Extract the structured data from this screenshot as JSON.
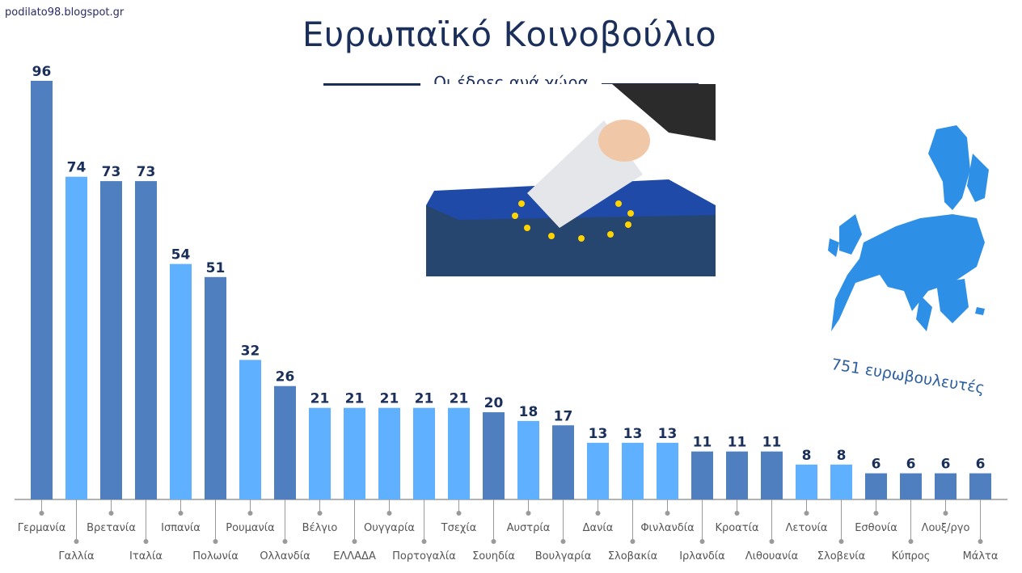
{
  "source": "podilato98.blogspot.gr",
  "header": {
    "title": "Ευρωπαϊκό Κοινοβούλιο",
    "subtitle": "Οι έδρες ανά χώρα"
  },
  "map_caption": "751 ευρωβουλευτές",
  "colors": {
    "dark_bar": "#4f7fbf",
    "light_bar": "#5fb0ff",
    "title": "#1b2f5b"
  },
  "chart_data": {
    "type": "bar",
    "title": "Ευρωπαϊκό Κοινοβούλιο",
    "subtitle": "Οι έδρες ανά χώρα",
    "xlabel": "",
    "ylabel": "",
    "ylim": [
      0,
      96
    ],
    "grid": false,
    "categories": [
      "Γερμανία",
      "Γαλλία",
      "Βρετανία",
      "Ιταλία",
      "Ισπανία",
      "Πολωνία",
      "Ρουμανία",
      "Ολλανδία",
      "Βέλγιο",
      "ΕΛΛΑΔΑ",
      "Ουγγαρία",
      "Πορτογαλία",
      "Τσεχία",
      "Σουηδία",
      "Αυστρία",
      "Βουλγαρία",
      "Δανία",
      "Σλοβακία",
      "Φινλανδία",
      "Ιρλανδία",
      "Κροατία",
      "Λιθουανία",
      "Λετονία",
      "Σλοβενία",
      "Εσθονία",
      "Κύπρος",
      "Λουξ/ργο",
      "Μάλτα"
    ],
    "values": [
      96,
      74,
      73,
      73,
      54,
      51,
      32,
      26,
      21,
      21,
      21,
      21,
      21,
      20,
      18,
      17,
      13,
      13,
      13,
      11,
      11,
      11,
      8,
      8,
      6,
      6,
      6,
      6
    ],
    "bar_shade": [
      "dark",
      "light",
      "dark",
      "dark",
      "light",
      "dark",
      "light",
      "dark",
      "light",
      "light",
      "light",
      "light",
      "light",
      "dark",
      "light",
      "dark",
      "light",
      "light",
      "light",
      "dark",
      "dark",
      "dark",
      "light",
      "light",
      "dark",
      "dark",
      "dark",
      "dark"
    ]
  }
}
